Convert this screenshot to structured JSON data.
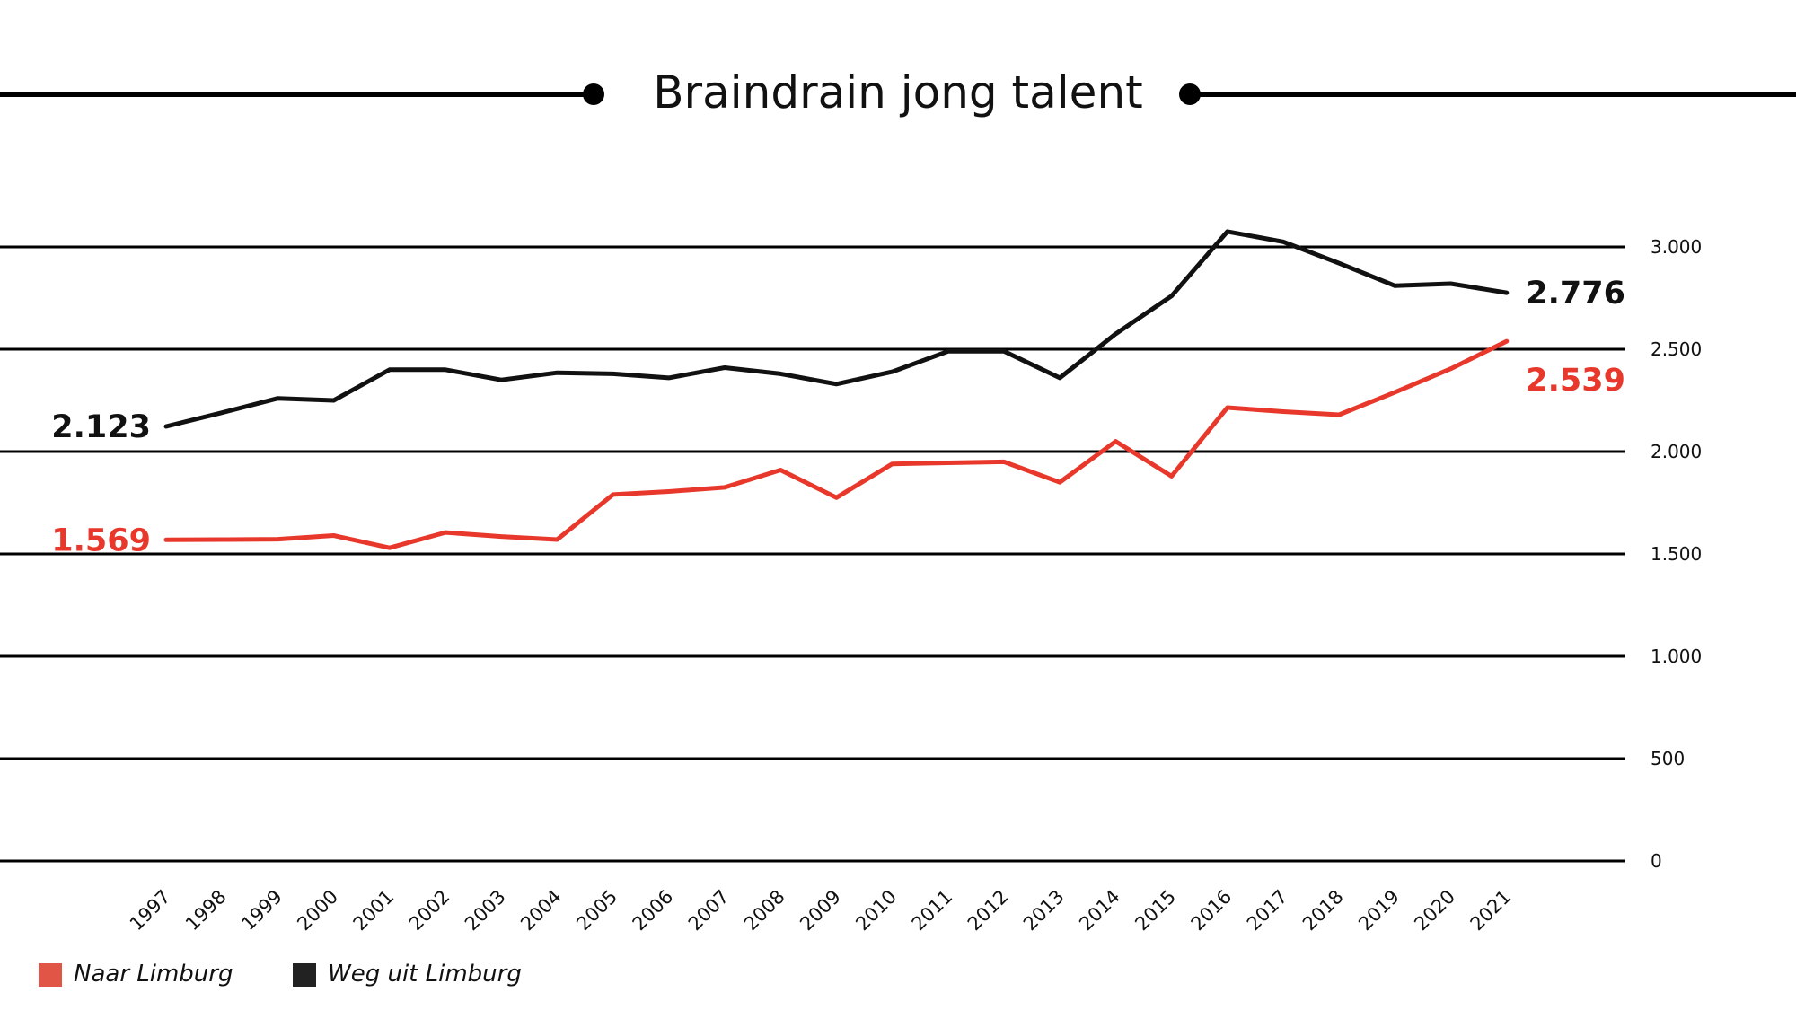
{
  "colors": {
    "naar": "#e8382b",
    "weg": "#111111",
    "legend_naar": "#e05545",
    "legend_weg": "#222222",
    "grid": "#000000"
  },
  "chart_data": {
    "type": "line",
    "title": "Braindrain jong talent",
    "x": [
      "1997",
      "1998",
      "1999",
      "2000",
      "2001",
      "2002",
      "2003",
      "2004",
      "2005",
      "2006",
      "2007",
      "2008",
      "2009",
      "2010",
      "2011",
      "2012",
      "2013",
      "2014",
      "2015",
      "2016",
      "2017",
      "2018",
      "2019",
      "2020",
      "2021"
    ],
    "yticks": [
      0,
      500,
      1000,
      1500,
      2000,
      2500,
      3000
    ],
    "ytick_labels": [
      "0",
      "500",
      "1.000",
      "1.500",
      "2.000",
      "2.500",
      "3.000"
    ],
    "ylim": [
      0,
      3000
    ],
    "y_axis_side": "right",
    "grid": true,
    "legend_position": "bottom-left",
    "series": [
      {
        "name": "Naar Limburg",
        "color": "#e8382b",
        "values": [
          1569,
          1570,
          1572,
          1590,
          1530,
          1605,
          1585,
          1570,
          1790,
          1805,
          1825,
          1910,
          1775,
          1940,
          1945,
          1950,
          1850,
          2050,
          1880,
          2215,
          2195,
          2180,
          2290,
          2405,
          2539
        ],
        "start_label": "1.569",
        "end_label": "2.539"
      },
      {
        "name": "Weg uit Limburg",
        "color": "#111111",
        "values": [
          2123,
          2190,
          2260,
          2250,
          2400,
          2400,
          2350,
          2385,
          2380,
          2360,
          2410,
          2380,
          2330,
          2390,
          2490,
          2490,
          2360,
          2575,
          2760,
          3075,
          3025,
          2920,
          2810,
          2820,
          2776
        ],
        "start_label": "2.123",
        "end_label": "2.776"
      }
    ]
  }
}
